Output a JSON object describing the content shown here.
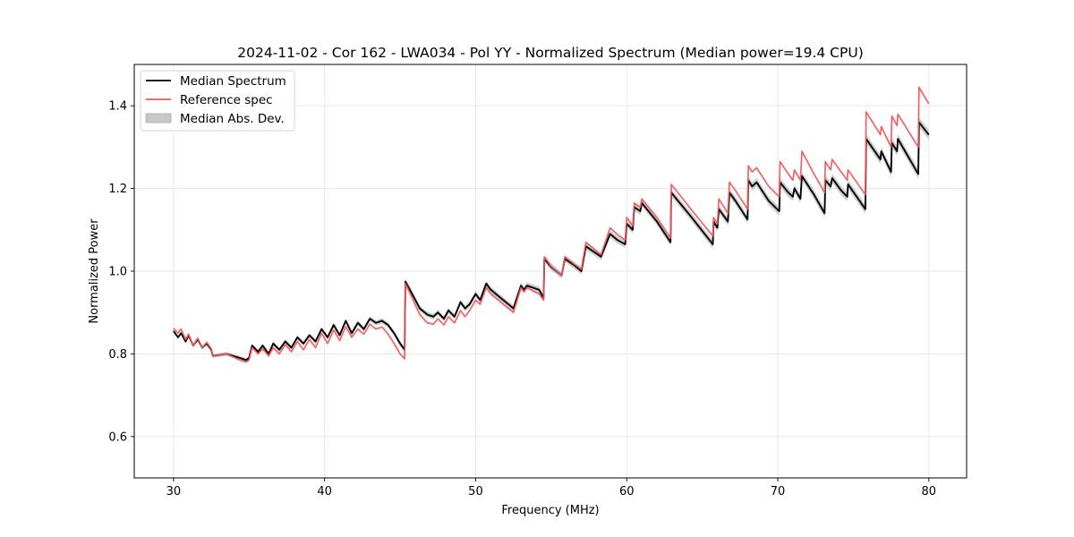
{
  "chart_data": {
    "type": "line",
    "title": "2024-11-02 - Cor 162 - LWA034 - Pol YY - Normalized Spectrum (Median power=19.4 CPU)",
    "xlabel": "Frequency (MHz)",
    "ylabel": "Normalized Power",
    "xlim": [
      27.4,
      82.5
    ],
    "ylim": [
      0.5,
      1.5
    ],
    "xticks": [
      30,
      40,
      50,
      60,
      70,
      80
    ],
    "xtick_labels": [
      "30",
      "40",
      "50",
      "60",
      "70",
      "80"
    ],
    "yticks": [
      0.6,
      0.8,
      1.0,
      1.2,
      1.4
    ],
    "ytick_labels": [
      "0.6",
      "0.8",
      "1.0",
      "1.2",
      "1.4"
    ],
    "grid": true,
    "legend_position": "top-left",
    "legend": [
      {
        "label": "Median Spectrum",
        "kind": "line",
        "color": "#000000"
      },
      {
        "label": "Reference spec",
        "kind": "line",
        "color": "#f05a5a"
      },
      {
        "label": "Median Abs. Dev.",
        "kind": "band",
        "color": "#c8c8c8"
      }
    ],
    "series": [
      {
        "name": "Median Spectrum",
        "color": "#000000",
        "x": [
          30.0,
          30.3,
          30.5,
          30.8,
          31.0,
          31.3,
          31.6,
          31.9,
          32.2,
          32.5,
          32.6,
          33.5,
          34.4,
          34.8,
          35.0,
          35.2,
          35.6,
          35.9,
          36.3,
          36.6,
          37.0,
          37.4,
          37.8,
          38.2,
          38.6,
          39.0,
          39.4,
          39.8,
          40.2,
          40.6,
          41.0,
          41.4,
          41.8,
          42.2,
          42.6,
          43.0,
          43.4,
          43.8,
          44.2,
          44.6,
          45.0,
          45.3,
          45.35,
          45.8,
          46.3,
          46.8,
          47.2,
          47.5,
          47.9,
          48.2,
          48.6,
          49.0,
          49.3,
          49.6,
          50.0,
          50.3,
          50.7,
          51.0,
          51.5,
          52.0,
          52.5,
          53.0,
          53.2,
          53.4,
          53.8,
          54.2,
          54.5,
          54.55,
          55.0,
          55.7,
          55.9,
          56.5,
          57.0,
          57.3,
          57.7,
          58.3,
          58.9,
          59.4,
          59.9,
          60.0,
          60.4,
          60.5,
          60.9,
          61.0,
          62.0,
          62.9,
          62.95,
          64.3,
          65.7,
          65.75,
          66.0,
          66.1,
          66.7,
          66.8,
          67.2,
          68.0,
          68.05,
          68.3,
          68.6,
          69.4,
          70.1,
          70.15,
          70.7,
          71.0,
          71.1,
          71.5,
          71.6,
          72.4,
          73.1,
          73.15,
          73.5,
          73.6,
          74.2,
          74.6,
          74.65,
          75.8,
          75.85,
          76.8,
          76.85,
          77.5,
          77.55,
          77.9,
          77.95,
          79.3,
          79.35,
          80.0
        ],
        "y": [
          0.855,
          0.84,
          0.85,
          0.83,
          0.845,
          0.82,
          0.835,
          0.815,
          0.825,
          0.81,
          0.795,
          0.8,
          0.79,
          0.785,
          0.79,
          0.82,
          0.805,
          0.82,
          0.8,
          0.825,
          0.81,
          0.83,
          0.815,
          0.84,
          0.825,
          0.845,
          0.83,
          0.86,
          0.84,
          0.87,
          0.845,
          0.88,
          0.85,
          0.875,
          0.86,
          0.885,
          0.875,
          0.88,
          0.87,
          0.85,
          0.825,
          0.81,
          0.975,
          0.945,
          0.91,
          0.895,
          0.89,
          0.9,
          0.885,
          0.905,
          0.89,
          0.925,
          0.91,
          0.92,
          0.945,
          0.93,
          0.97,
          0.955,
          0.94,
          0.925,
          0.91,
          0.965,
          0.955,
          0.965,
          0.96,
          0.955,
          0.935,
          1.03,
          1.01,
          0.99,
          1.03,
          1.015,
          1.0,
          1.06,
          1.05,
          1.035,
          1.09,
          1.075,
          1.065,
          1.115,
          1.1,
          1.155,
          1.145,
          1.165,
          1.12,
          1.07,
          1.19,
          1.13,
          1.065,
          1.12,
          1.105,
          1.15,
          1.12,
          1.19,
          1.17,
          1.125,
          1.22,
          1.205,
          1.215,
          1.17,
          1.145,
          1.215,
          1.19,
          1.18,
          1.2,
          1.175,
          1.23,
          1.185,
          1.14,
          1.22,
          1.205,
          1.225,
          1.195,
          1.18,
          1.21,
          1.15,
          1.32,
          1.27,
          1.29,
          1.24,
          1.31,
          1.29,
          1.32,
          1.235,
          1.36,
          1.33
        ],
        "mad_halfwidth_at_start": 0.004,
        "mad_halfwidth_at_end": 0.012
      },
      {
        "name": "Reference spec",
        "color": "#f05a5a",
        "x": [
          30.0,
          30.3,
          30.5,
          30.8,
          31.0,
          31.3,
          31.6,
          31.9,
          32.2,
          32.5,
          32.6,
          33.5,
          34.4,
          34.8,
          35.0,
          35.2,
          35.6,
          35.9,
          36.3,
          36.6,
          37.0,
          37.4,
          37.8,
          38.2,
          38.6,
          39.0,
          39.4,
          39.8,
          40.2,
          40.6,
          41.0,
          41.4,
          41.8,
          42.2,
          42.6,
          43.0,
          43.4,
          43.8,
          44.2,
          44.6,
          45.0,
          45.3,
          45.35,
          45.8,
          46.3,
          46.8,
          47.2,
          47.5,
          47.9,
          48.2,
          48.6,
          49.0,
          49.3,
          49.6,
          50.0,
          50.3,
          50.7,
          51.0,
          51.5,
          52.0,
          52.5,
          53.0,
          53.2,
          53.4,
          53.8,
          54.2,
          54.5,
          54.55,
          55.0,
          55.7,
          55.9,
          56.5,
          57.0,
          57.3,
          57.7,
          58.3,
          58.9,
          59.4,
          59.9,
          60.0,
          60.4,
          60.5,
          60.9,
          61.0,
          62.0,
          62.9,
          62.95,
          64.3,
          65.7,
          65.75,
          66.0,
          66.1,
          66.7,
          66.8,
          67.2,
          68.0,
          68.05,
          68.3,
          68.6,
          69.4,
          70.1,
          70.15,
          70.7,
          71.0,
          71.1,
          71.5,
          71.6,
          72.4,
          73.1,
          73.15,
          73.5,
          73.6,
          74.2,
          74.6,
          74.65,
          75.8,
          75.85,
          76.8,
          76.85,
          77.5,
          77.55,
          77.9,
          77.95,
          79.3,
          79.35,
          80.0
        ],
        "y": [
          0.862,
          0.85,
          0.86,
          0.835,
          0.848,
          0.82,
          0.838,
          0.815,
          0.828,
          0.812,
          0.795,
          0.8,
          0.785,
          0.78,
          0.785,
          0.815,
          0.8,
          0.812,
          0.795,
          0.815,
          0.8,
          0.822,
          0.805,
          0.83,
          0.81,
          0.835,
          0.815,
          0.85,
          0.825,
          0.858,
          0.832,
          0.866,
          0.84,
          0.86,
          0.848,
          0.872,
          0.86,
          0.865,
          0.848,
          0.825,
          0.8,
          0.788,
          0.97,
          0.935,
          0.895,
          0.875,
          0.872,
          0.885,
          0.87,
          0.89,
          0.875,
          0.905,
          0.89,
          0.905,
          0.93,
          0.92,
          0.96,
          0.945,
          0.93,
          0.915,
          0.9,
          0.96,
          0.95,
          0.96,
          0.952,
          0.945,
          0.93,
          1.035,
          1.012,
          0.99,
          1.035,
          1.018,
          1.005,
          1.07,
          1.058,
          1.04,
          1.105,
          1.088,
          1.075,
          1.13,
          1.11,
          1.165,
          1.155,
          1.175,
          1.13,
          1.08,
          1.21,
          1.148,
          1.085,
          1.13,
          1.115,
          1.175,
          1.14,
          1.215,
          1.195,
          1.15,
          1.255,
          1.24,
          1.25,
          1.205,
          1.18,
          1.265,
          1.235,
          1.22,
          1.245,
          1.22,
          1.29,
          1.235,
          1.19,
          1.265,
          1.245,
          1.27,
          1.24,
          1.22,
          1.245,
          1.185,
          1.385,
          1.33,
          1.35,
          1.3,
          1.375,
          1.352,
          1.38,
          1.3,
          1.445,
          1.405
        ]
      }
    ]
  }
}
